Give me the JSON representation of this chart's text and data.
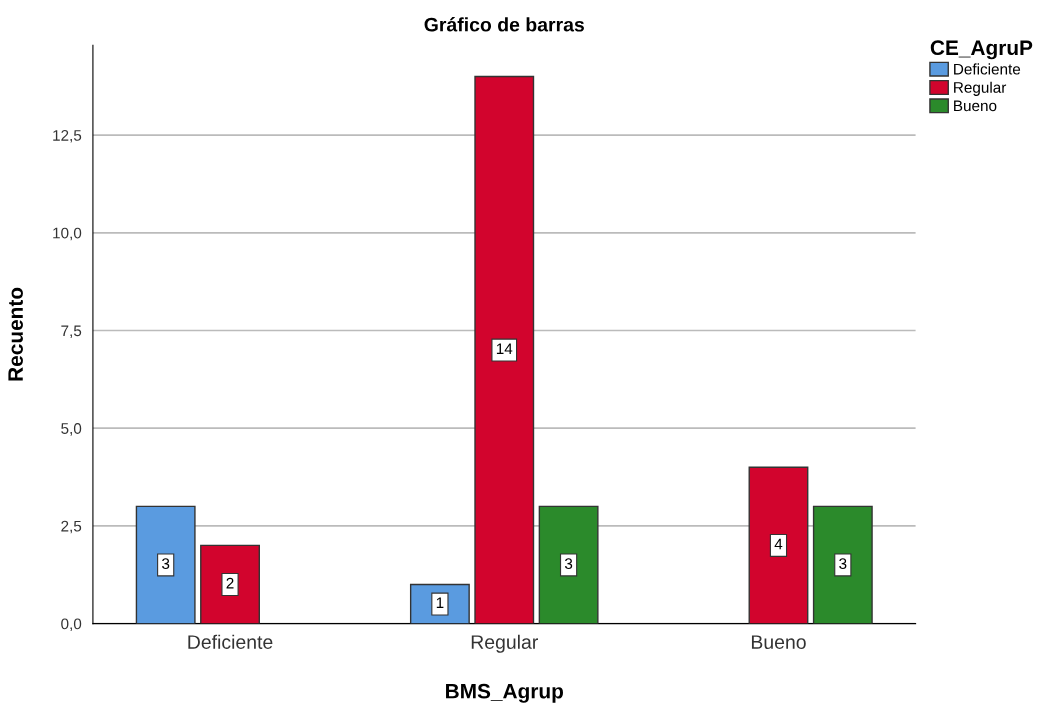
{
  "chart_data": {
    "type": "bar",
    "title": "Gráfico de barras",
    "xlabel": "BMS_Agrup",
    "ylabel": "Recuento",
    "legend_title": "CE_AgruP",
    "categories": [
      "Deficiente",
      "Regular",
      "Bueno"
    ],
    "series": [
      {
        "name": "Deficiente",
        "color": "#5a9be0",
        "values": [
          3,
          1,
          null
        ]
      },
      {
        "name": "Regular",
        "color": "#d2042d",
        "values": [
          2,
          14,
          4
        ]
      },
      {
        "name": "Bueno",
        "color": "#2b8a2b",
        "values": [
          null,
          3,
          3
        ]
      }
    ],
    "ylim": [
      0,
      14.8
    ],
    "yticks": [
      {
        "value": 0,
        "label": "0,0"
      },
      {
        "value": 2.5,
        "label": "2,5"
      },
      {
        "value": 5,
        "label": "5,0"
      },
      {
        "value": 7.5,
        "label": "7,5"
      },
      {
        "value": 10,
        "label": "10,0"
      },
      {
        "value": 12.5,
        "label": "12,5"
      }
    ],
    "grid": "y",
    "legend": "top right",
    "data_labels": true
  }
}
